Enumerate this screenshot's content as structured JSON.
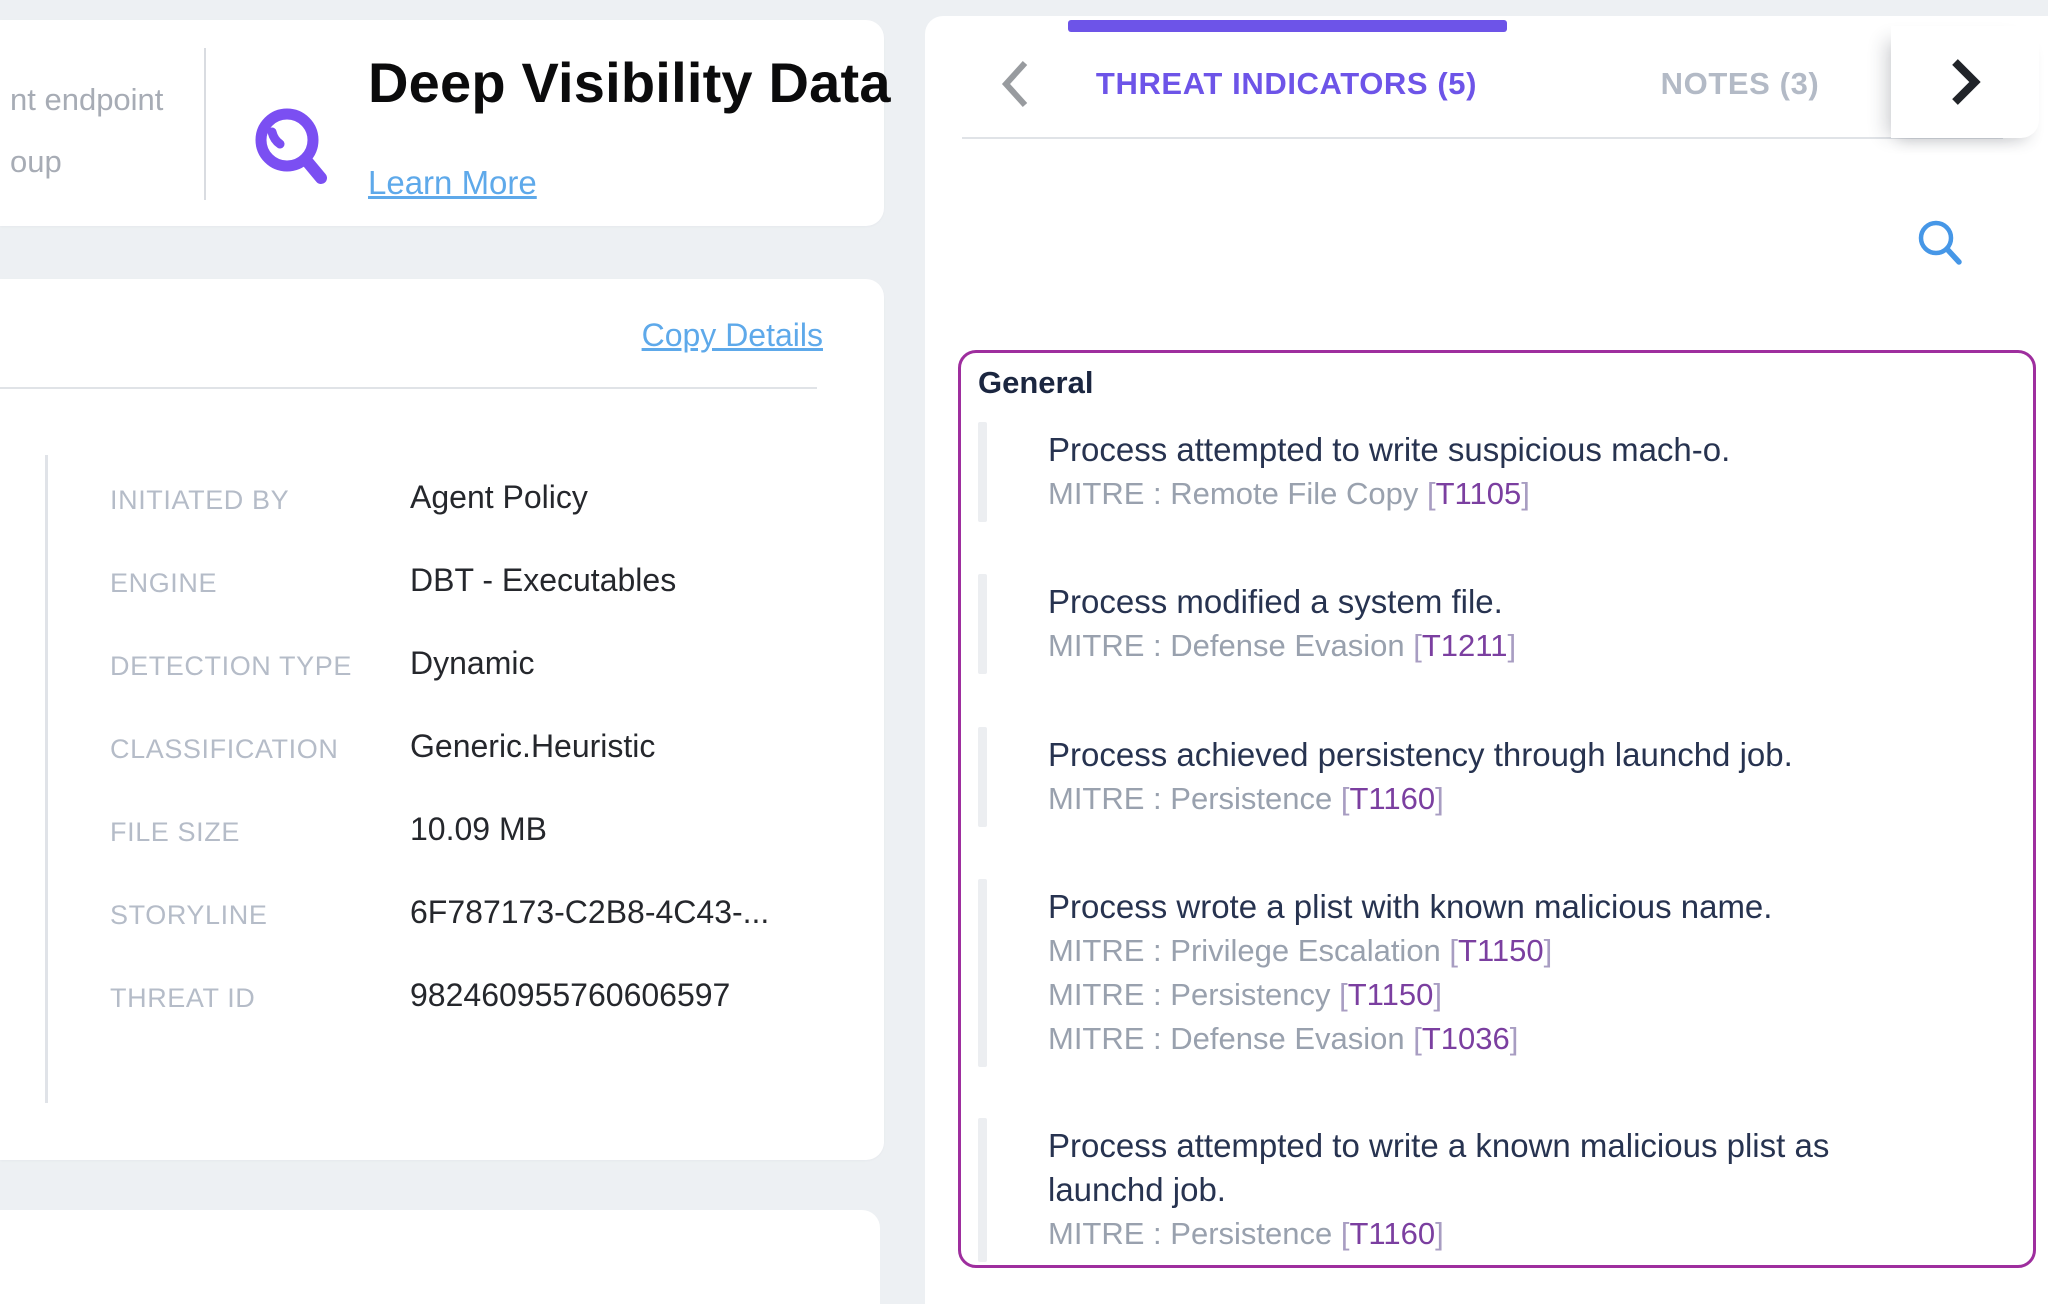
{
  "colors": {
    "bg": "#edf0f3",
    "accent-purple": "#6d54e8",
    "icon-purple": "#7b4ff2",
    "link-blue": "#5ea9ea",
    "box-border": "#9e2e9e",
    "search-blue": "#4697e7",
    "grey-trunc": "#a7acb5",
    "field-label": "#b5bcc8",
    "field-value": "#25272c",
    "item-title": "#273350",
    "mitre-grey": "#99a1ae",
    "mitre-code": "#7b3fa0",
    "divider": "#e0e3e7",
    "item-accent": "#eceef1"
  },
  "header": {
    "left_text_line1": "nt endpoint",
    "left_text_line2": "oup",
    "title": "Deep Visibility Data",
    "learn_more_label": "Learn More"
  },
  "details": {
    "copy_label": "Copy Details",
    "fields": [
      {
        "label": "INITIATED BY",
        "value": "Agent Policy"
      },
      {
        "label": "ENGINE",
        "value": "DBT - Executables"
      },
      {
        "label": "DETECTION TYPE",
        "value": "Dynamic"
      },
      {
        "label": "CLASSIFICATION",
        "value": "Generic.Heuristic"
      },
      {
        "label": "FILE SIZE",
        "value": "10.09 MB"
      },
      {
        "label": "STORYLINE",
        "value": "6F787173-C2B8-4C43-..."
      },
      {
        "label": "THREAT ID",
        "value": "982460955760606597"
      }
    ]
  },
  "tabs": {
    "items": [
      {
        "label": "THREAT INDICATORS (5)",
        "active": true
      },
      {
        "label": "NOTES (3)",
        "active": false
      }
    ]
  },
  "indicators": {
    "group": "General",
    "mitre_prefix": "MITRE :",
    "items": [
      {
        "title": "Process attempted to write suspicious mach-o.",
        "mitre": [
          {
            "category": "Remote File Copy",
            "code": "T1105"
          }
        ]
      },
      {
        "title": "Process modified a system file.",
        "mitre": [
          {
            "category": "Defense Evasion",
            "code": "T1211"
          }
        ]
      },
      {
        "title": "Process achieved persistency through launchd job.",
        "mitre": [
          {
            "category": "Persistence",
            "code": "T1160"
          }
        ]
      },
      {
        "title": "Process wrote a plist with known malicious name.",
        "mitre": [
          {
            "category": "Privilege Escalation",
            "code": "T1150"
          },
          {
            "category": "Persistency",
            "code": "T1150"
          },
          {
            "category": "Defense Evasion",
            "code": "T1036"
          }
        ]
      },
      {
        "title": "Process attempted to write a known malicious plist as launchd job.",
        "mitre": [
          {
            "category": "Persistence",
            "code": "T1160"
          }
        ]
      }
    ]
  }
}
